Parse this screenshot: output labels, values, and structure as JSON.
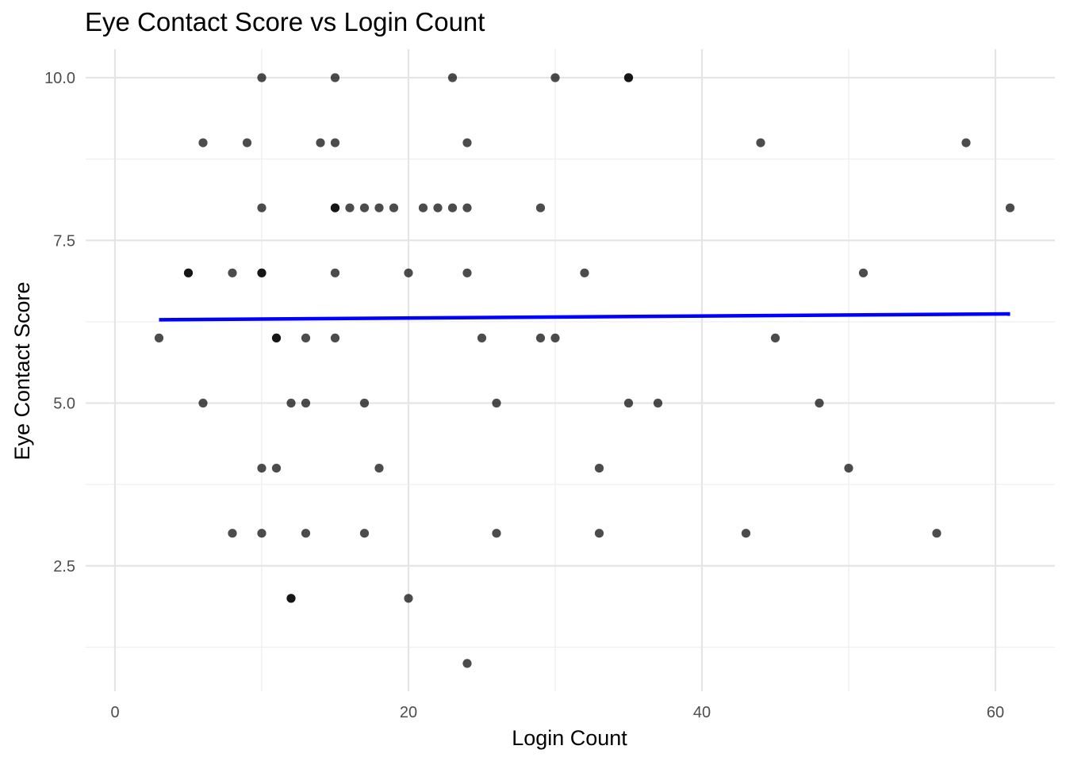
{
  "chart_data": {
    "type": "scatter",
    "title": "Eye Contact Score vs Login Count",
    "xlabel": "Login Count",
    "ylabel": "Eye Contact Score",
    "xlim": [
      0,
      63
    ],
    "ylim": [
      0.7,
      10.45
    ],
    "x_ticks": [
      0,
      20,
      40,
      60
    ],
    "x_tick_labels": [
      "0",
      "20",
      "40",
      "60"
    ],
    "y_ticks": [
      2.5,
      5.0,
      7.5,
      10.0
    ],
    "y_tick_labels": [
      "2.5",
      "5.0",
      "7.5",
      "10.0"
    ],
    "grid": true,
    "legend": "none",
    "colors": {
      "points": "#000000",
      "trend_line": "#0000ff",
      "grid": "#e5e5e5"
    },
    "points": [
      {
        "x": 10,
        "y": 10
      },
      {
        "x": 15,
        "y": 10
      },
      {
        "x": 23,
        "y": 10
      },
      {
        "x": 30,
        "y": 10
      },
      {
        "x": 35,
        "y": 10
      },
      {
        "x": 35,
        "y": 10
      },
      {
        "x": 6,
        "y": 9
      },
      {
        "x": 9,
        "y": 9
      },
      {
        "x": 14,
        "y": 9
      },
      {
        "x": 15,
        "y": 9
      },
      {
        "x": 24,
        "y": 9
      },
      {
        "x": 44,
        "y": 9
      },
      {
        "x": 58,
        "y": 9
      },
      {
        "x": 10,
        "y": 8
      },
      {
        "x": 15,
        "y": 8
      },
      {
        "x": 15,
        "y": 8
      },
      {
        "x": 16,
        "y": 8
      },
      {
        "x": 17,
        "y": 8
      },
      {
        "x": 18,
        "y": 8
      },
      {
        "x": 19,
        "y": 8
      },
      {
        "x": 21,
        "y": 8
      },
      {
        "x": 22,
        "y": 8
      },
      {
        "x": 23,
        "y": 8
      },
      {
        "x": 24,
        "y": 8
      },
      {
        "x": 29,
        "y": 8
      },
      {
        "x": 61,
        "y": 8
      },
      {
        "x": 5,
        "y": 7
      },
      {
        "x": 5,
        "y": 7
      },
      {
        "x": 8,
        "y": 7
      },
      {
        "x": 10,
        "y": 7
      },
      {
        "x": 10,
        "y": 7
      },
      {
        "x": 15,
        "y": 7
      },
      {
        "x": 20,
        "y": 7
      },
      {
        "x": 24,
        "y": 7
      },
      {
        "x": 32,
        "y": 7
      },
      {
        "x": 51,
        "y": 7
      },
      {
        "x": 3,
        "y": 6
      },
      {
        "x": 11,
        "y": 6
      },
      {
        "x": 11,
        "y": 6
      },
      {
        "x": 13,
        "y": 6
      },
      {
        "x": 15,
        "y": 6
      },
      {
        "x": 25,
        "y": 6
      },
      {
        "x": 29,
        "y": 6
      },
      {
        "x": 30,
        "y": 6
      },
      {
        "x": 45,
        "y": 6
      },
      {
        "x": 6,
        "y": 5
      },
      {
        "x": 12,
        "y": 5
      },
      {
        "x": 13,
        "y": 5
      },
      {
        "x": 17,
        "y": 5
      },
      {
        "x": 26,
        "y": 5
      },
      {
        "x": 35,
        "y": 5
      },
      {
        "x": 37,
        "y": 5
      },
      {
        "x": 48,
        "y": 5
      },
      {
        "x": 10,
        "y": 4
      },
      {
        "x": 11,
        "y": 4
      },
      {
        "x": 18,
        "y": 4
      },
      {
        "x": 33,
        "y": 4
      },
      {
        "x": 50,
        "y": 4
      },
      {
        "x": 8,
        "y": 3
      },
      {
        "x": 10,
        "y": 3
      },
      {
        "x": 13,
        "y": 3
      },
      {
        "x": 17,
        "y": 3
      },
      {
        "x": 26,
        "y": 3
      },
      {
        "x": 33,
        "y": 3
      },
      {
        "x": 43,
        "y": 3
      },
      {
        "x": 56,
        "y": 3
      },
      {
        "x": 12,
        "y": 2
      },
      {
        "x": 12,
        "y": 2
      },
      {
        "x": 20,
        "y": 2
      },
      {
        "x": 24,
        "y": 1
      }
    ],
    "trend_line": {
      "x": [
        3,
        61
      ],
      "y": [
        6.28,
        6.37
      ]
    }
  }
}
